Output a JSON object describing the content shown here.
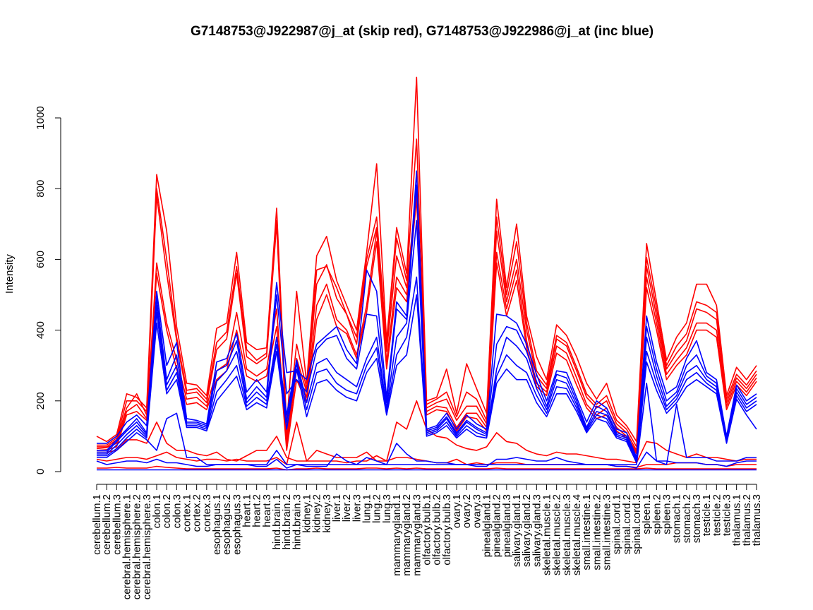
{
  "chart_data": {
    "type": "line",
    "title": "G7148753@J922987@j_at (skip red), G7148753@J922986@j_at (inc blue)",
    "xlabel": "",
    "ylabel": "Intensity",
    "ylim": [
      0,
      1000
    ],
    "yticks": [
      0,
      200,
      400,
      600,
      800,
      1000
    ],
    "grid": false,
    "categories": [
      "cerebellum.1",
      "cerebellum.2",
      "cerebellum.3",
      "cerebral.hemisphere.1",
      "cerebral.hemisphere.2",
      "cerebral.hemisphere.3",
      "colon.1",
      "colon.2",
      "colon.3",
      "cortex.1",
      "cortex.2",
      "cortex.3",
      "esophagus.1",
      "esophagus.2",
      "esophagus.3",
      "heart.1",
      "heart.2",
      "heart.3",
      "hind.brain.1",
      "hind.brain.2",
      "hind.brain.3",
      "kidney.1",
      "kidney.2",
      "kidney.3",
      "liver.1",
      "liver.2",
      "liver.3",
      "lung.1",
      "lung.2",
      "lung.3",
      "mammarygland.1",
      "mammarygland.2",
      "mammarygland.3",
      "olfactory.bulb.1",
      "olfactory.bulb.2",
      "olfactory.bulb.3",
      "ovary.1",
      "ovary.2",
      "ovary.3",
      "pinealgland.1",
      "pinealgland.2",
      "pinealgland.3",
      "salivary.gland.1",
      "salivary.gland.2",
      "salivary.gland.3",
      "skeletal.muscle.1",
      "skeletal.muscle.2",
      "skeletal.muscle.3",
      "skeletal.muscle.4",
      "small.intestine.1",
      "small.intestine.2",
      "small.intestine.3",
      "spinal.cord.1",
      "spinal.cord.2",
      "spinal.cord.3",
      "spleen.1",
      "spleen.2",
      "spleen.3",
      "stomach.1",
      "stomach.2",
      "stomach.3",
      "testicle.1",
      "testicle.2",
      "testicle.3",
      "thalamus.1",
      "thalamus.2",
      "thalamus.3"
    ],
    "series": [
      {
        "name": "skip red 1",
        "color": "#ff0000",
        "values": [
          100,
          85,
          105,
          220,
          210,
          180,
          840,
          680,
          410,
          250,
          245,
          215,
          405,
          420,
          620,
          365,
          345,
          350,
          745,
          130,
          510,
          250,
          610,
          665,
          540,
          470,
          400,
          620,
          870,
          370,
          690,
          560,
          1115,
          200,
          210,
          290,
          165,
          305,
          235,
          165,
          770,
          520,
          700,
          440,
          325,
          260,
          415,
          385,
          325,
          250,
          205,
          250,
          160,
          130,
          85,
          645,
          480,
          315,
          380,
          420,
          530,
          530,
          470,
          215,
          295,
          260,
          300
        ]
      },
      {
        "name": "skip red 2",
        "color": "#ff0000",
        "values": [
          75,
          75,
          95,
          200,
          200,
          170,
          800,
          600,
          380,
          230,
          235,
          205,
          365,
          395,
          580,
          345,
          315,
          335,
          710,
          100,
          360,
          235,
          570,
          580,
          520,
          445,
          380,
          600,
          720,
          360,
          660,
          540,
          940,
          190,
          205,
          225,
          155,
          225,
          205,
          145,
          720,
          500,
          650,
          420,
          285,
          245,
          385,
          365,
          295,
          220,
          190,
          215,
          145,
          120,
          70,
          605,
          460,
          300,
          355,
          390,
          480,
          470,
          450,
          205,
          275,
          245,
          285
        ]
      },
      {
        "name": "skip red 3",
        "color": "#ff0000",
        "values": [
          70,
          70,
          90,
          180,
          220,
          160,
          780,
          560,
          370,
          220,
          225,
          195,
          345,
          375,
          560,
          325,
          305,
          325,
          700,
          80,
          320,
          225,
          530,
          585,
          490,
          445,
          360,
          580,
          690,
          340,
          610,
          520,
          800,
          180,
          195,
          205,
          145,
          185,
          185,
          135,
          680,
          480,
          600,
          400,
          270,
          235,
          375,
          355,
          285,
          210,
          180,
          200,
          135,
          110,
          60,
          580,
          440,
          290,
          335,
          370,
          460,
          450,
          430,
          195,
          265,
          235,
          275
        ]
      },
      {
        "name": "skip red 4",
        "color": "#ff0000",
        "values": [
          65,
          68,
          80,
          170,
          190,
          150,
          590,
          420,
          315,
          205,
          210,
          185,
          285,
          305,
          450,
          290,
          270,
          290,
          460,
          70,
          290,
          210,
          470,
          530,
          430,
          400,
          330,
          470,
          680,
          310,
          550,
          500,
          790,
          170,
          185,
          180,
          125,
          165,
          165,
          125,
          620,
          460,
          570,
          370,
          250,
          225,
          355,
          335,
          265,
          190,
          160,
          180,
          125,
          100,
          55,
          550,
          420,
          275,
          315,
          350,
          420,
          420,
          400,
          185,
          255,
          225,
          265
        ]
      },
      {
        "name": "skip red 5",
        "color": "#ff0000",
        "values": [
          60,
          62,
          70,
          160,
          170,
          145,
          560,
          400,
          290,
          190,
          195,
          175,
          260,
          285,
          400,
          270,
          255,
          270,
          410,
          60,
          260,
          195,
          430,
          500,
          410,
          390,
          320,
          450,
          650,
          290,
          520,
          480,
          770,
          160,
          175,
          170,
          115,
          155,
          150,
          115,
          590,
          440,
          540,
          350,
          240,
          215,
          335,
          315,
          245,
          180,
          150,
          160,
          115,
          95,
          50,
          520,
          400,
          260,
          300,
          330,
          400,
          400,
          380,
          175,
          245,
          215,
          255
        ]
      },
      {
        "name": "skip red 6",
        "color": "#ff0000",
        "values": [
          55,
          55,
          60,
          90,
          90,
          80,
          140,
          80,
          60,
          60,
          50,
          45,
          55,
          35,
          30,
          45,
          60,
          60,
          100,
          40,
          30,
          30,
          60,
          50,
          40,
          40,
          40,
          55,
          30,
          30,
          140,
          120,
          200,
          120,
          100,
          95,
          75,
          65,
          60,
          70,
          110,
          85,
          80,
          60,
          50,
          45,
          55,
          50,
          50,
          45,
          40,
          35,
          35,
          30,
          25,
          85,
          80,
          60,
          50,
          40,
          50,
          40,
          40,
          35,
          30,
          35,
          35
        ]
      },
      {
        "name": "skip red 7",
        "color": "#ff0000",
        "values": [
          35,
          30,
          35,
          40,
          40,
          35,
          45,
          55,
          40,
          35,
          30,
          35,
          35,
          30,
          35,
          30,
          30,
          30,
          40,
          20,
          140,
          30,
          30,
          30,
          30,
          25,
          30,
          30,
          45,
          30,
          40,
          40,
          35,
          30,
          25,
          25,
          35,
          20,
          25,
          20,
          25,
          25,
          25,
          20,
          20,
          20,
          20,
          20,
          20,
          20,
          20,
          20,
          15,
          15,
          12,
          20,
          20,
          20,
          25,
          25,
          25,
          20,
          20,
          15,
          20,
          20,
          20
        ]
      },
      {
        "name": "skip red 8",
        "color": "#ff0000",
        "values": [
          10,
          10,
          12,
          10,
          10,
          10,
          15,
          12,
          10,
          8,
          8,
          8,
          8,
          8,
          8,
          8,
          8,
          8,
          10,
          5,
          8,
          8,
          10,
          8,
          8,
          8,
          8,
          10,
          10,
          8,
          10,
          8,
          10,
          8,
          8,
          8,
          8,
          8,
          8,
          8,
          10,
          8,
          8,
          8,
          8,
          8,
          8,
          8,
          8,
          8,
          8,
          8,
          8,
          8,
          8,
          10,
          8,
          8,
          8,
          8,
          8,
          8,
          8,
          8,
          8,
          8,
          8
        ]
      },
      {
        "name": "inc blue 1",
        "color": "#0000ff",
        "values": [
          80,
          80,
          100,
          140,
          160,
          130,
          510,
          300,
          365,
          150,
          145,
          135,
          310,
          320,
          390,
          225,
          260,
          225,
          535,
          280,
          285,
          260,
          360,
          385,
          410,
          345,
          305,
          570,
          510,
          210,
          480,
          440,
          850,
          120,
          130,
          165,
          120,
          160,
          135,
          120,
          445,
          440,
          420,
          360,
          275,
          200,
          285,
          280,
          210,
          140,
          200,
          180,
          120,
          110,
          40,
          440,
          310,
          220,
          240,
          320,
          370,
          280,
          260,
          100,
          245,
          200,
          220
        ]
      },
      {
        "name": "inc blue 2",
        "color": "#0000ff",
        "values": [
          60,
          60,
          90,
          120,
          150,
          110,
          490,
          260,
          330,
          140,
          140,
          130,
          285,
          300,
          370,
          205,
          240,
          210,
          500,
          220,
          260,
          225,
          345,
          375,
          385,
          320,
          290,
          445,
          440,
          195,
          460,
          430,
          810,
          115,
          125,
          155,
          110,
          145,
          125,
          110,
          360,
          410,
          400,
          340,
          255,
          185,
          275,
          265,
          200,
          125,
          185,
          170,
          110,
          100,
          35,
          410,
          290,
          200,
          225,
          300,
          330,
          270,
          250,
          95,
          235,
          190,
          210
        ]
      },
      {
        "name": "inc blue 3",
        "color": "#0000ff",
        "values": [
          55,
          55,
          85,
          115,
          140,
          105,
          470,
          245,
          300,
          135,
          135,
          125,
          255,
          285,
          340,
          195,
          225,
          200,
          380,
          160,
          315,
          195,
          305,
          320,
          280,
          260,
          240,
          320,
          380,
          180,
          380,
          420,
          710,
          110,
          120,
          150,
          105,
          140,
          120,
          105,
          290,
          380,
          355,
          320,
          235,
          175,
          260,
          250,
          190,
          120,
          170,
          160,
          105,
          95,
          30,
          380,
          270,
          185,
          215,
          280,
          300,
          260,
          240,
          90,
          225,
          180,
          200
        ]
      },
      {
        "name": "inc blue 4",
        "color": "#0000ff",
        "values": [
          50,
          50,
          75,
          105,
          130,
          100,
          450,
          230,
          280,
          130,
          130,
          120,
          225,
          260,
          300,
          185,
          210,
          190,
          360,
          140,
          305,
          175,
          280,
          290,
          250,
          230,
          220,
          300,
          350,
          170,
          330,
          380,
          550,
          105,
          115,
          140,
          100,
          130,
          110,
          100,
          270,
          330,
          300,
          280,
          215,
          165,
          240,
          235,
          180,
          115,
          160,
          150,
          100,
          90,
          28,
          340,
          250,
          175,
          205,
          260,
          280,
          250,
          230,
          85,
          215,
          170,
          190
        ]
      },
      {
        "name": "inc blue 5",
        "color": "#0000ff",
        "values": [
          45,
          45,
          65,
          95,
          120,
          95,
          420,
          220,
          260,
          125,
          125,
          115,
          200,
          235,
          270,
          175,
          195,
          180,
          340,
          120,
          290,
          155,
          250,
          260,
          230,
          210,
          200,
          280,
          320,
          160,
          300,
          330,
          500,
          100,
          110,
          130,
          95,
          120,
          100,
          95,
          250,
          290,
          260,
          260,
          195,
          155,
          220,
          220,
          170,
          110,
          150,
          140,
          95,
          85,
          25,
          310,
          230,
          165,
          195,
          240,
          260,
          240,
          220,
          80,
          205,
          160,
          120
        ]
      },
      {
        "name": "inc blue 6",
        "color": "#0000ff",
        "values": [
          40,
          40,
          60,
          85,
          110,
          90,
          60,
          150,
          165,
          40,
          40,
          20,
          20,
          20,
          20,
          20,
          20,
          20,
          60,
          20,
          20,
          20,
          20,
          20,
          20,
          20,
          20,
          20,
          20,
          20,
          20,
          20,
          20,
          20,
          20,
          20,
          20,
          20,
          20,
          20,
          20,
          20,
          20,
          20,
          20,
          20,
          20,
          20,
          20,
          20,
          20,
          20,
          20,
          20,
          20,
          250,
          30,
          20,
          190,
          40,
          40,
          40,
          30,
          30,
          30,
          40,
          40
        ]
      },
      {
        "name": "inc blue 7",
        "color": "#0000ff",
        "values": [
          30,
          20,
          25,
          30,
          30,
          25,
          35,
          25,
          25,
          20,
          15,
          15,
          20,
          20,
          20,
          20,
          15,
          15,
          35,
          10,
          20,
          15,
          15,
          15,
          50,
          30,
          20,
          40,
          30,
          20,
          80,
          50,
          30,
          30,
          25,
          25,
          20,
          20,
          15,
          15,
          35,
          35,
          40,
          35,
          30,
          30,
          40,
          30,
          25,
          20,
          20,
          20,
          15,
          15,
          10,
          55,
          30,
          30,
          25,
          25,
          25,
          20,
          20,
          15,
          25,
          30,
          30
        ]
      },
      {
        "name": "inc blue 8",
        "color": "#0000ff",
        "values": [
          5,
          5,
          5,
          5,
          5,
          5,
          5,
          5,
          5,
          5,
          5,
          5,
          5,
          5,
          5,
          5,
          5,
          5,
          5,
          5,
          5,
          5,
          5,
          5,
          5,
          5,
          5,
          5,
          5,
          5,
          5,
          5,
          5,
          5,
          5,
          5,
          5,
          5,
          5,
          5,
          5,
          5,
          5,
          5,
          5,
          5,
          5,
          5,
          5,
          5,
          5,
          5,
          5,
          5,
          5,
          5,
          5,
          5,
          5,
          5,
          5,
          5,
          5,
          5,
          5,
          5,
          5
        ]
      }
    ]
  }
}
